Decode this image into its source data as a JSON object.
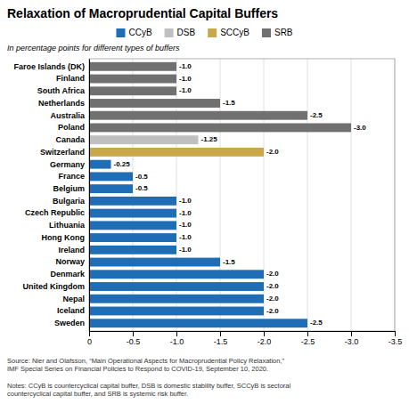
{
  "chart_data": {
    "type": "bar",
    "orientation": "horizontal",
    "title": "Relaxation of Macroprudential Capital Buffers",
    "subtitle": "In percentage points for different types of buffers",
    "annotations": [
      "Source: Nier and Olafsson, “Main Operational Aspects for Macroprudential Policy Relaxation,”\nIMF Special Series on Financial Policies to Respond to COVID-19, September 10, 2020.",
      "Notes: CCyB is countercyclical capital buffer, DSB is domestic stability buffer, SCCyB is sectoral\ncountercyclical capital buffer, and SRB is systemic risk buffer."
    ],
    "categories": [
      "Faroe Islands (DK)",
      "Finland",
      "South Africa",
      "Netherlands",
      "Australia",
      "Poland",
      "Canada",
      "Switzerland",
      "Germany",
      "France",
      "Belgium",
      "Bulgaria",
      "Czech Republic",
      "Lithuania",
      "Hong Kong",
      "Ireland",
      "Norway",
      "Denmark",
      "United Kingdom",
      "Nepal",
      "Iceland",
      "Sweden"
    ],
    "series": [
      {
        "name": "CCyB",
        "color": "#1f6db5",
        "values": [
          null,
          null,
          null,
          null,
          null,
          null,
          null,
          null,
          -0.25,
          -0.5,
          -0.5,
          -1.0,
          -1.0,
          -1.0,
          -1.0,
          -1.0,
          -1.5,
          -2.0,
          -2.0,
          -2.0,
          -2.0,
          -2.5
        ],
        "value_labels": [
          null,
          null,
          null,
          null,
          null,
          null,
          null,
          null,
          "-0.25",
          "-0.5",
          "-0.5",
          "-1.0",
          "-1.0",
          "-1.0",
          "-1.0",
          "-1.0",
          "-1.5",
          "-2.0",
          "-2.0",
          "-2.0",
          "-2.0",
          "-2.5"
        ]
      },
      {
        "name": "DSB",
        "color": "#c0c0c0",
        "values": [
          null,
          null,
          null,
          null,
          null,
          null,
          -1.25,
          null,
          null,
          null,
          null,
          null,
          null,
          null,
          null,
          null,
          null,
          null,
          null,
          null,
          null,
          null
        ],
        "value_labels": [
          null,
          null,
          null,
          null,
          null,
          null,
          "-1.25",
          null,
          null,
          null,
          null,
          null,
          null,
          null,
          null,
          null,
          null,
          null,
          null,
          null,
          null,
          null
        ]
      },
      {
        "name": "SCCyB",
        "color": "#c8a84b",
        "values": [
          null,
          null,
          null,
          null,
          null,
          null,
          null,
          -2.0,
          null,
          null,
          null,
          null,
          null,
          null,
          null,
          null,
          null,
          null,
          null,
          null,
          null,
          null
        ],
        "value_labels": [
          null,
          null,
          null,
          null,
          null,
          null,
          null,
          "-2.0",
          null,
          null,
          null,
          null,
          null,
          null,
          null,
          null,
          null,
          null,
          null,
          null,
          null,
          null
        ]
      },
      {
        "name": "SRB",
        "color": "#707070",
        "values": [
          -1.0,
          -1.0,
          -1.0,
          -1.5,
          -2.5,
          -3.0,
          null,
          null,
          null,
          null,
          null,
          null,
          null,
          null,
          null,
          null,
          null,
          null,
          null,
          null,
          null,
          null
        ],
        "value_labels": [
          "-1.0",
          "-1.0",
          "-1.0",
          "-1.5",
          "-2.5",
          "-3.0",
          null,
          null,
          null,
          null,
          null,
          null,
          null,
          null,
          null,
          null,
          null,
          null,
          null,
          null,
          null,
          null
        ]
      }
    ],
    "xlim": [
      0,
      -3.5
    ],
    "xticks": [
      0,
      -0.5,
      {
        "value": -1.0,
        "label": "-1.0"
      },
      -1.5,
      {
        "value": -2.0,
        "label": "-2.0"
      },
      -2.5,
      {
        "value": -3.0,
        "label": "-3.0"
      },
      -3.5
    ],
    "grid": true,
    "data_labels": true
  }
}
